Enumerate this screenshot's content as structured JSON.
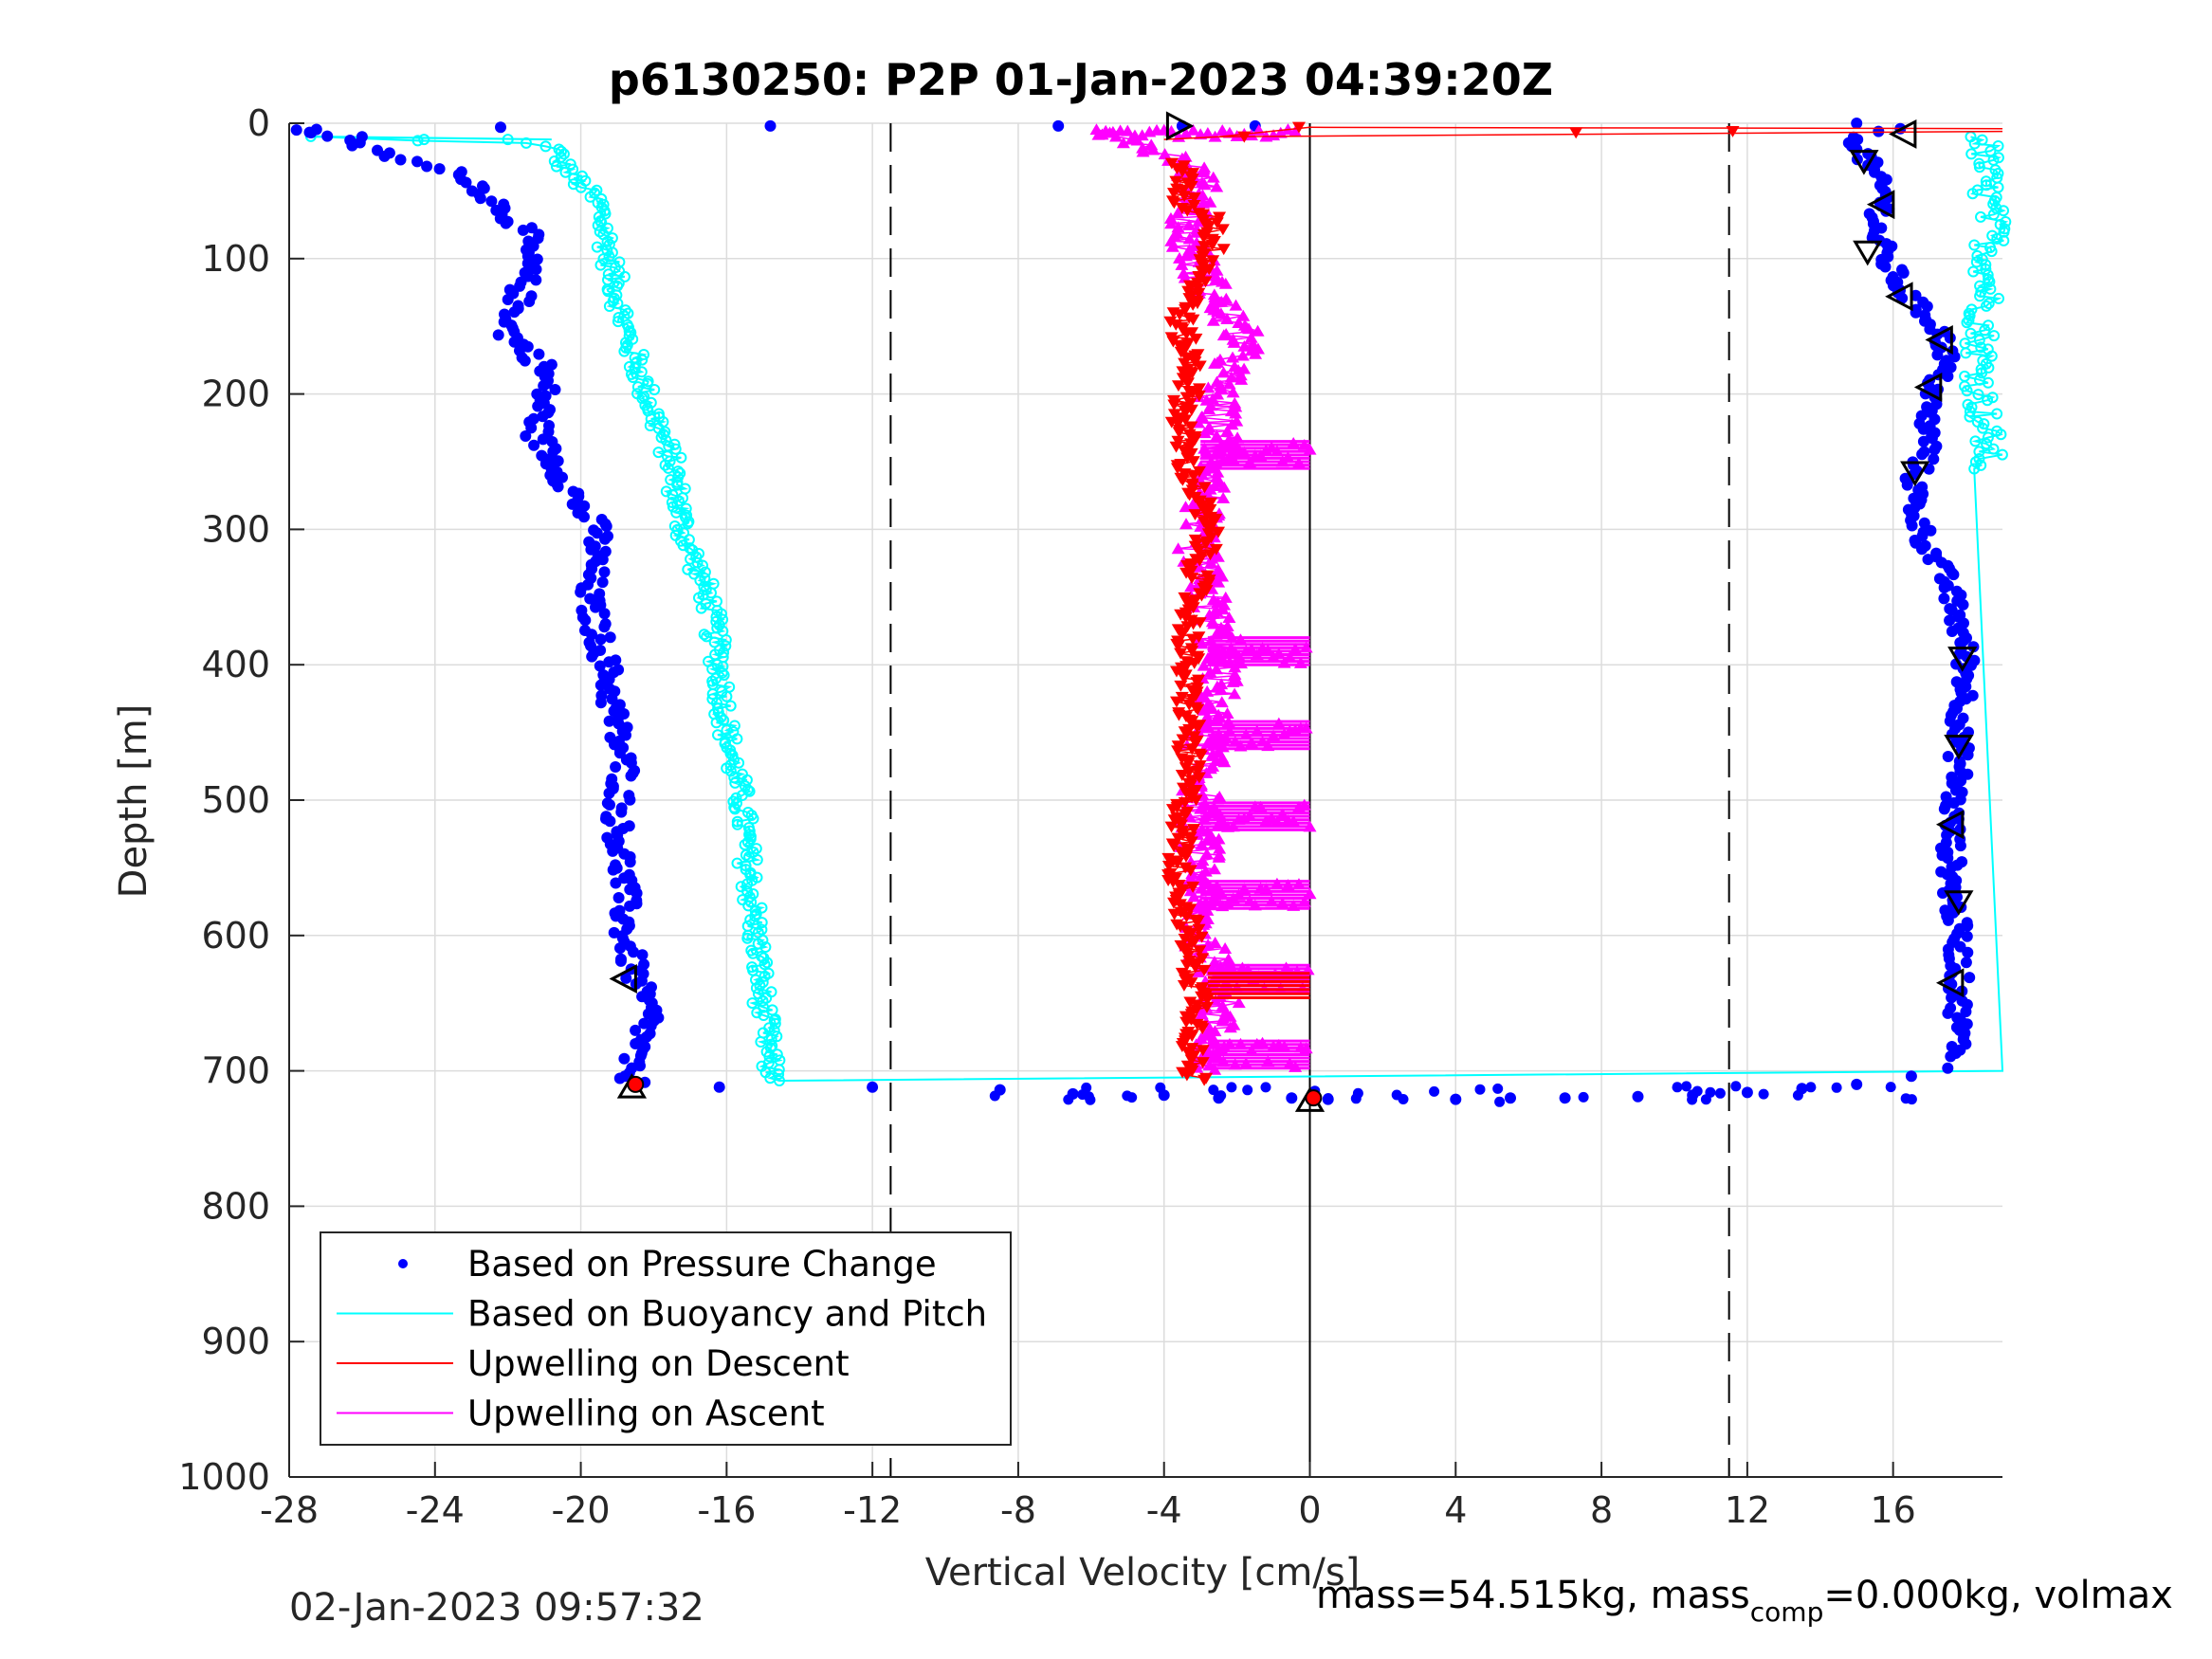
{
  "chart_data": {
    "type": "scatter",
    "title": "p6130250: P2P 01-Jan-2023 04:39:20Z",
    "xlabel": "Vertical Velocity [cm/s]",
    "ylabel": "Depth [m]",
    "xlim": [
      -28,
      19
    ],
    "ylim": [
      0,
      1000
    ],
    "y_reversed": true,
    "xticks": [
      -28,
      -24,
      -20,
      -16,
      -12,
      -8,
      -4,
      0,
      4,
      8,
      12,
      16
    ],
    "yticks": [
      0,
      100,
      200,
      300,
      400,
      500,
      600,
      700,
      800,
      900,
      1000
    ],
    "grid": true,
    "legend_location": "bottom-left",
    "reference_lines": {
      "dashed_x": [
        -11.5,
        11.5
      ],
      "solid_x": [
        0
      ]
    },
    "series": [
      {
        "name": "Based on Pressure Change",
        "color": "#0000ff",
        "marker": "dot",
        "descent_profile": [
          [
            -27.5,
            5
          ],
          [
            -24.5,
            30
          ],
          [
            -23,
            40
          ],
          [
            -22.5,
            55
          ],
          [
            -21.5,
            80
          ],
          [
            -21.5,
            110
          ],
          [
            -21.8,
            140
          ],
          [
            -22,
            155
          ],
          [
            -21,
            180
          ],
          [
            -21,
            200
          ],
          [
            -21.2,
            230
          ],
          [
            -20.5,
            260
          ],
          [
            -20,
            285
          ],
          [
            -19.5,
            300
          ],
          [
            -19.6,
            320
          ],
          [
            -19.8,
            350
          ],
          [
            -19.5,
            380
          ],
          [
            -19.3,
            400
          ],
          [
            -19.2,
            420
          ],
          [
            -19,
            450
          ],
          [
            -18.8,
            480
          ],
          [
            -19,
            510
          ],
          [
            -18.9,
            540
          ],
          [
            -18.8,
            570
          ],
          [
            -18.8,
            600
          ],
          [
            -18.6,
            620
          ],
          [
            -18.4,
            640
          ],
          [
            -18.1,
            660
          ],
          [
            -18.4,
            680
          ],
          [
            -18.8,
            700
          ],
          [
            -18.5,
            710
          ]
        ],
        "ascent_profile": [
          [
            15,
            10
          ],
          [
            15.3,
            30
          ],
          [
            15.8,
            55
          ],
          [
            15.5,
            80
          ],
          [
            15.8,
            100
          ],
          [
            16.3,
            125
          ],
          [
            17.2,
            150
          ],
          [
            17.5,
            170
          ],
          [
            17.2,
            190
          ],
          [
            16.9,
            215
          ],
          [
            17.0,
            240
          ],
          [
            16.6,
            260
          ],
          [
            16.6,
            285
          ],
          [
            16.9,
            310
          ],
          [
            17.5,
            340
          ],
          [
            17.8,
            370
          ],
          [
            18.0,
            395
          ],
          [
            18.0,
            420
          ],
          [
            17.8,
            450
          ],
          [
            17.8,
            480
          ],
          [
            17.6,
            510
          ],
          [
            17.6,
            540
          ],
          [
            17.6,
            570
          ],
          [
            17.8,
            600
          ],
          [
            17.8,
            630
          ],
          [
            17.8,
            660
          ],
          [
            17.8,
            690
          ]
        ],
        "bottom_transition": [
          [
            -16.2,
            712
          ],
          [
            -12,
            712
          ],
          [
            -8.5,
            714
          ],
          [
            -6.5,
            717
          ],
          [
            -4.0,
            718
          ],
          [
            -2.5,
            720
          ],
          [
            -0.5,
            720
          ],
          [
            0.5,
            721
          ],
          [
            4.0,
            721
          ],
          [
            5.5,
            720
          ],
          [
            7.0,
            720
          ],
          [
            9.0,
            719
          ],
          [
            10.5,
            718
          ],
          [
            12.0,
            716
          ],
          [
            13.5,
            713
          ],
          [
            15.0,
            710
          ],
          [
            16.5,
            704
          ],
          [
            17.5,
            698
          ]
        ]
      },
      {
        "name": "Based on Buoyancy and Pitch",
        "color": "#00ffff",
        "marker": "line",
        "descent_profile": [
          [
            -27.5,
            10
          ],
          [
            -20.8,
            15
          ],
          [
            -20.5,
            30
          ],
          [
            -19.5,
            60
          ],
          [
            -19.2,
            100
          ],
          [
            -18.8,
            150
          ],
          [
            -18.2,
            200
          ],
          [
            -17.5,
            250
          ],
          [
            -17.2,
            300
          ],
          [
            -16.5,
            350
          ],
          [
            -16.2,
            400
          ],
          [
            -16.0,
            450
          ],
          [
            -15.6,
            500
          ],
          [
            -15.4,
            550
          ],
          [
            -15.2,
            600
          ],
          [
            -15.0,
            650
          ],
          [
            -14.8,
            700
          ],
          [
            -14.6,
            708
          ]
        ],
        "ascent_profile": [
          [
            18.5,
            10
          ],
          [
            18.5,
            40
          ],
          [
            18.7,
            80
          ],
          [
            18.6,
            120
          ],
          [
            18.4,
            160
          ],
          [
            18.4,
            200
          ],
          [
            18.6,
            240
          ],
          [
            18.5,
            255
          ]
        ],
        "bottom_transition": [
          [
            -14.6,
            708
          ],
          [
            19,
            700
          ]
        ]
      },
      {
        "name": "Upwelling on Descent",
        "color": "#ff0000",
        "marker": "triangle-down",
        "profile": [
          [
            0,
            5
          ],
          [
            19,
            8
          ],
          [
            -3.5,
            30
          ],
          [
            -3.5,
            60
          ],
          [
            -2.6,
            70
          ],
          [
            -2.7,
            100
          ],
          [
            -3.6,
            150
          ],
          [
            -3.2,
            180
          ],
          [
            -3.5,
            220
          ],
          [
            -3.4,
            250
          ],
          [
            -2.8,
            300
          ],
          [
            -3.2,
            350
          ],
          [
            -3.4,
            400
          ],
          [
            -3.3,
            450
          ],
          [
            -3.4,
            500
          ],
          [
            -3.6,
            550
          ],
          [
            -3.3,
            600
          ],
          [
            -3.2,
            630
          ],
          [
            -3.0,
            650
          ],
          [
            -3.3,
            700
          ],
          [
            -3.0,
            708
          ]
        ]
      },
      {
        "name": "Upwelling on Ascent",
        "color": "#ff00ff",
        "marker": "triangle-up",
        "profile": [
          [
            -5.5,
            5
          ],
          [
            -3.2,
            30
          ],
          [
            -3.0,
            60
          ],
          [
            -3.5,
            80
          ],
          [
            -2.6,
            130
          ],
          [
            -1.8,
            160
          ],
          [
            -2.6,
            200
          ],
          [
            -2.4,
            250
          ],
          [
            -3.2,
            300
          ],
          [
            -2.8,
            350
          ],
          [
            -2.4,
            400
          ],
          [
            -2.8,
            450
          ],
          [
            -3.0,
            500
          ],
          [
            -3.0,
            550
          ],
          [
            -3.0,
            600
          ],
          [
            -2.4,
            640
          ],
          [
            -2.8,
            700
          ],
          [
            -4.0,
            700
          ]
        ],
        "plateaus": [
          [
            -3.0,
            0,
            245
          ],
          [
            -2.8,
            0,
            390
          ],
          [
            -2.8,
            0,
            452
          ],
          [
            -3.0,
            0,
            512
          ],
          [
            -3.0,
            0,
            570
          ],
          [
            -2.6,
            0,
            632
          ],
          [
            -2.8,
            0,
            688
          ]
        ]
      }
    ],
    "markers": {
      "black_triangles_descent": [
        [
          -3.6,
          2
        ],
        [
          -18.8,
          632
        ],
        [
          -18.6,
          712
        ],
        [
          0,
          722
        ]
      ],
      "black_triangles_ascent": [
        [
          16.3,
          8
        ],
        [
          15.2,
          28
        ],
        [
          15.7,
          60
        ],
        [
          15.3,
          95
        ],
        [
          16.2,
          128
        ],
        [
          17.3,
          160
        ],
        [
          17.0,
          195
        ],
        [
          16.6,
          258
        ],
        [
          17.9,
          395
        ],
        [
          17.8,
          460
        ],
        [
          17.6,
          518
        ],
        [
          17.8,
          575
        ],
        [
          17.6,
          635
        ]
      ],
      "red_points": [
        [
          -18.5,
          710
        ],
        [
          0.1,
          720
        ]
      ]
    }
  },
  "footer": {
    "timestamp": "02-Jan-2023 09:57:32",
    "mass_text_a": "mass=54.515kg, mass",
    "mass_sub": "comp",
    "mass_text_b": "=0.000kg, volmax"
  }
}
